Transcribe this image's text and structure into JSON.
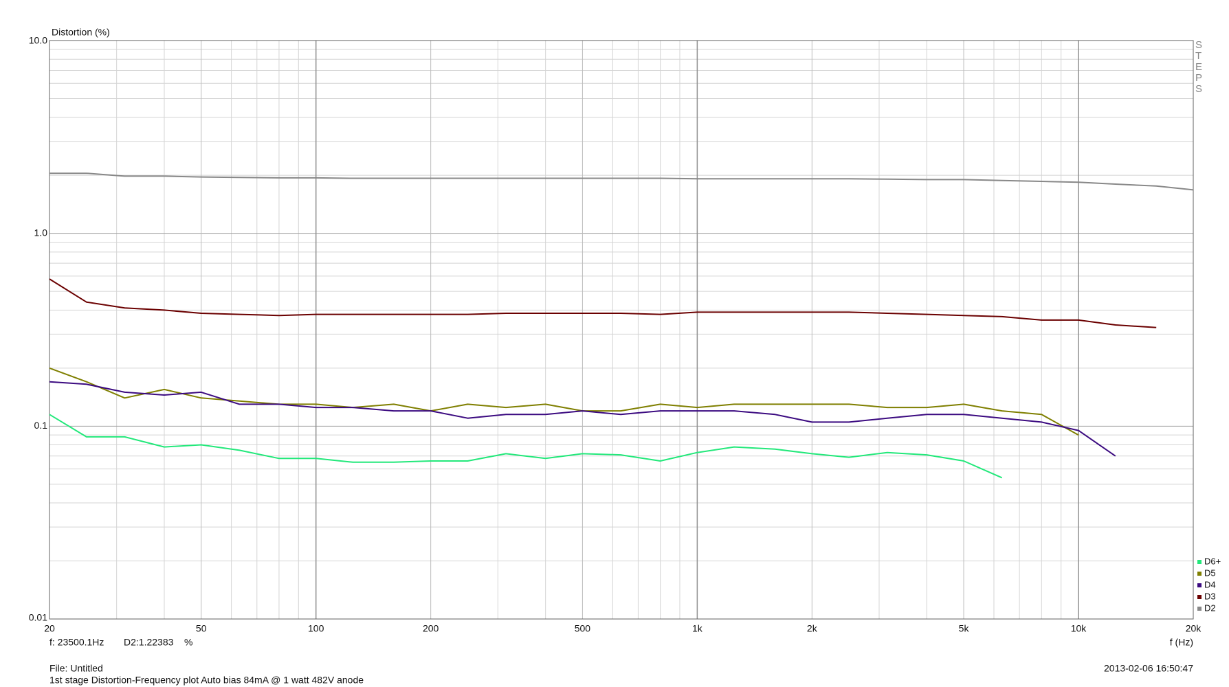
{
  "chart_data": {
    "type": "line",
    "y_label": "Distortion (%)",
    "x_label": "f (Hz)",
    "side_label": "STEPS",
    "cursor_readout": {
      "frequency": "f: 23500.1Hz",
      "value": "D2:1.22383",
      "unit": "%"
    },
    "file_label": "File: Untitled",
    "description": "1st stage Distortion-Frequency plot Auto bias 84mA @ 1 watt 482V anode",
    "timestamp": "2013-02-06 16:50:47",
    "xscale": "log",
    "yscale": "log",
    "grid": true,
    "legend": "lower-right",
    "xlim": [
      20,
      20000
    ],
    "ylim": [
      0.01,
      10
    ],
    "xticks": [
      20,
      50,
      100,
      200,
      500,
      {
        "value": 1000,
        "label": "1k"
      },
      {
        "value": 2000,
        "label": "2k"
      },
      {
        "value": 5000,
        "label": "5k"
      },
      {
        "value": 10000,
        "label": "10k"
      },
      {
        "value": 20000,
        "label": "20k"
      }
    ],
    "xminorticks": [
      30,
      40,
      60,
      70,
      80,
      90,
      300,
      400,
      600,
      700,
      800,
      900,
      3000,
      4000,
      6000,
      7000,
      8000,
      9000
    ],
    "yticks": [
      0.01,
      0.1,
      {
        "value": 1,
        "label": "1.0"
      },
      {
        "value": 10,
        "label": "10.0"
      }
    ],
    "yminorticks": [
      0.02,
      0.03,
      0.04,
      0.05,
      0.06,
      0.07,
      0.08,
      0.09,
      0.2,
      0.3,
      0.4,
      0.5,
      0.6,
      0.7,
      0.8,
      0.9,
      2,
      3,
      4,
      5,
      6,
      7,
      8,
      9
    ],
    "x": [
      20,
      25,
      31.5,
      40,
      50,
      63,
      80,
      100,
      125,
      160,
      200,
      250,
      315,
      400,
      500,
      630,
      800,
      1000,
      1250,
      1600,
      2000,
      2500,
      3150,
      4000,
      5000,
      6300,
      8000,
      10000,
      12500,
      16000,
      20000
    ],
    "series": [
      {
        "name": "D6+",
        "color": "#22e87a",
        "values": [
          0.115,
          0.088,
          0.088,
          0.078,
          0.08,
          0.075,
          0.068,
          0.068,
          0.065,
          0.065,
          0.066,
          0.066,
          0.072,
          0.068,
          0.072,
          0.071,
          0.066,
          0.073,
          0.078,
          0.076,
          0.072,
          0.069,
          0.073,
          0.071,
          0.066,
          0.054,
          null,
          null,
          null,
          null,
          null
        ]
      },
      {
        "name": "D5",
        "color": "#7f7f00",
        "values": [
          0.2,
          0.17,
          0.14,
          0.155,
          0.14,
          0.135,
          0.13,
          0.13,
          0.125,
          0.13,
          0.12,
          0.13,
          0.125,
          0.13,
          0.12,
          0.12,
          0.13,
          0.125,
          0.13,
          0.13,
          0.13,
          0.13,
          0.125,
          0.125,
          0.13,
          0.12,
          0.115,
          0.09,
          null,
          null,
          null
        ]
      },
      {
        "name": "D4",
        "color": "#3b0a80",
        "values": [
          0.17,
          0.165,
          0.15,
          0.145,
          0.15,
          0.13,
          0.13,
          0.125,
          0.125,
          0.12,
          0.12,
          0.11,
          0.115,
          0.115,
          0.12,
          0.115,
          0.12,
          0.12,
          0.12,
          0.115,
          0.105,
          0.105,
          0.11,
          0.115,
          0.115,
          0.11,
          0.105,
          0.095,
          0.07,
          null,
          null
        ]
      },
      {
        "name": "D3",
        "color": "#6b0000",
        "values": [
          0.58,
          0.44,
          0.41,
          0.4,
          0.385,
          0.38,
          0.375,
          0.38,
          0.38,
          0.38,
          0.38,
          0.38,
          0.385,
          0.385,
          0.385,
          0.385,
          0.38,
          0.39,
          0.39,
          0.39,
          0.39,
          0.39,
          0.385,
          0.38,
          0.375,
          0.37,
          0.355,
          0.355,
          0.335,
          0.325,
          null
        ]
      },
      {
        "name": "D2",
        "color": "#888888",
        "values": [
          2.05,
          2.05,
          1.98,
          1.98,
          1.96,
          1.95,
          1.94,
          1.94,
          1.93,
          1.93,
          1.93,
          1.93,
          1.93,
          1.93,
          1.93,
          1.93,
          1.93,
          1.92,
          1.92,
          1.92,
          1.92,
          1.92,
          1.91,
          1.9,
          1.9,
          1.88,
          1.86,
          1.84,
          1.8,
          1.76,
          1.68
        ]
      }
    ]
  }
}
